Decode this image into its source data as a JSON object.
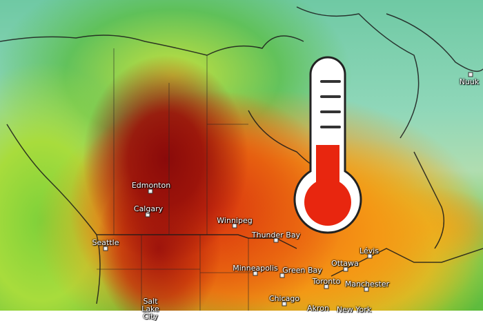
{
  "map": {
    "type": "temperature-map",
    "colors": {
      "hot": "#8a0a0a",
      "warm": "#f06a12",
      "mild": "#f2d22a",
      "cool": "#5dbb3c",
      "cold": "#8fd7b9"
    },
    "overlay_icon": "thermometer-icon",
    "overlay_colors": {
      "fill": "#e8260f",
      "outline": "#ffffff",
      "border": "#222222"
    },
    "cities": [
      {
        "name": "Nuuk"
      },
      {
        "name": "Edmonton"
      },
      {
        "name": "Calgary"
      },
      {
        "name": "Winnipeg"
      },
      {
        "name": "Seattle"
      },
      {
        "name": "Thunder Bay"
      },
      {
        "name": "Minneapolis"
      },
      {
        "name": "Green Bay"
      },
      {
        "name": "Ottawa"
      },
      {
        "name": "Lévis"
      },
      {
        "name": "Toronto"
      },
      {
        "name": "Manchester"
      },
      {
        "name": "Chicago"
      },
      {
        "name": "Salt Lake City"
      },
      {
        "name": "Akron"
      },
      {
        "name": "New York"
      }
    ]
  }
}
